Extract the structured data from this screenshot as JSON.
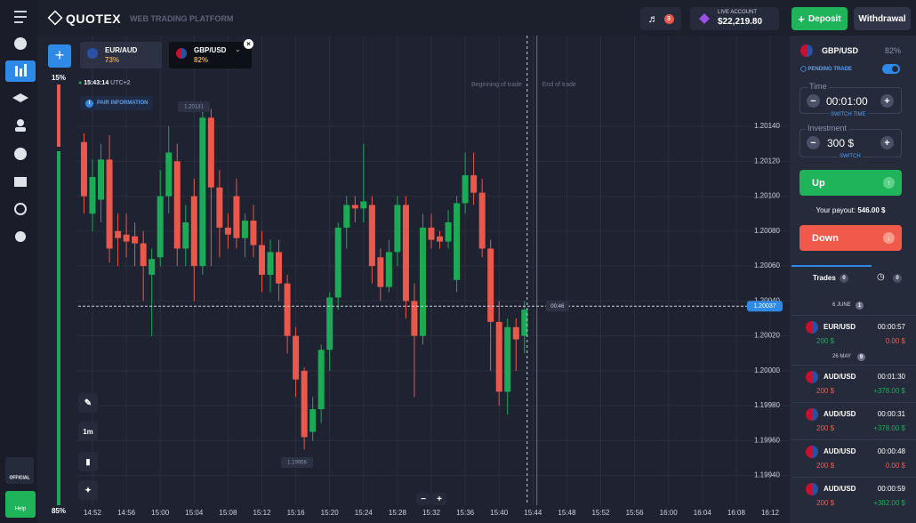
{
  "header": {
    "logo": "QUOTEX",
    "subtitle": "WEB TRADING PLATFORM",
    "notifications": "3",
    "account_type": "LIVE ACCOUNT",
    "balance": "$22,219.80",
    "deposit": "Deposit",
    "withdrawal": "Withdrawal"
  },
  "tabs": [
    {
      "pair": "EUR/AUD",
      "payout": "73%"
    },
    {
      "pair": "GBP/USD",
      "payout": "82%"
    }
  ],
  "sidebar": {
    "top_percent": "15%",
    "bottom_percent": "85%",
    "official": "OFFICIAL",
    "help": "Help"
  },
  "chart": {
    "type": "candlestick",
    "clock": "15:43:14",
    "timezone": "UTC+2",
    "pair_info": "PAIR INFORMATION",
    "max_label": "1.20131",
    "min_label": "1.19956",
    "current_price": 1.20037,
    "timer": "00:46",
    "begin_label": "Beginning of trade",
    "end_label": "End of trade",
    "timeframe": "1m",
    "ylim": [
      1.19923,
      1.20192
    ],
    "yticks": [
      {
        "value": 1.2014,
        "label": "1.20140"
      },
      {
        "value": 1.2012,
        "label": "1.20120"
      },
      {
        "value": 1.201,
        "label": "1.20100"
      },
      {
        "value": 1.2008,
        "label": "1.20080"
      },
      {
        "value": 1.2006,
        "label": "1.20060"
      },
      {
        "value": 1.2004,
        "label": "1.20040"
      },
      {
        "value": 1.2002,
        "label": "1.20020"
      },
      {
        "value": 1.2,
        "label": "1.20000"
      },
      {
        "value": 1.1998,
        "label": "1.19980"
      },
      {
        "value": 1.1996,
        "label": "1.19960"
      },
      {
        "value": 1.1994,
        "label": "1.19940"
      }
    ],
    "categories": [
      "14:52",
      "14:56",
      "15:00",
      "15:04",
      "15:08",
      "15:12",
      "15:16",
      "15:20",
      "15:24",
      "15:28",
      "15:32",
      "15:36",
      "15:40",
      "15:44",
      "15:48",
      "15:52",
      "15:56",
      "16:00",
      "16:04",
      "16:08",
      "16:12"
    ],
    "up_color": "#1bab57",
    "down_color": "#e9584a",
    "candles": [
      {
        "open": 1.20131,
        "high": 1.20136,
        "low": 1.2009,
        "close": 1.201
      },
      {
        "open": 1.2009,
        "high": 1.20121,
        "low": 1.2008,
        "close": 1.20111
      },
      {
        "open": 1.20098,
        "high": 1.2013,
        "low": 1.20085,
        "close": 1.20121
      },
      {
        "open": 1.20121,
        "high": 1.20135,
        "low": 1.20062,
        "close": 1.2007
      },
      {
        "open": 1.2008,
        "high": 1.2009,
        "low": 1.2006,
        "close": 1.20076
      },
      {
        "open": 1.20078,
        "high": 1.2009,
        "low": 1.20065,
        "close": 1.20074
      },
      {
        "open": 1.20077,
        "high": 1.20085,
        "low": 1.2006,
        "close": 1.20073
      },
      {
        "open": 1.20073,
        "high": 1.2008,
        "low": 1.2004,
        "close": 1.2006
      },
      {
        "open": 1.20055,
        "high": 1.2007,
        "low": 1.2002,
        "close": 1.20064
      },
      {
        "open": 1.20065,
        "high": 1.20115,
        "low": 1.2006,
        "close": 1.201
      },
      {
        "open": 1.201,
        "high": 1.2014,
        "low": 1.2009,
        "close": 1.20125
      },
      {
        "open": 1.2012,
        "high": 1.2013,
        "low": 1.2006,
        "close": 1.2007
      },
      {
        "open": 1.2007,
        "high": 1.20095,
        "low": 1.2006,
        "close": 1.20085
      },
      {
        "open": 1.201,
        "high": 1.2011,
        "low": 1.2004,
        "close": 1.2006
      },
      {
        "open": 1.2006,
        "high": 1.2015,
        "low": 1.20055,
        "close": 1.20145
      },
      {
        "open": 1.20145,
        "high": 1.2015,
        "low": 1.2006,
        "close": 1.20105
      },
      {
        "open": 1.20105,
        "high": 1.20115,
        "low": 1.20065,
        "close": 1.20082
      },
      {
        "open": 1.20082,
        "high": 1.2009,
        "low": 1.2007,
        "close": 1.20078
      },
      {
        "open": 1.201,
        "high": 1.2011,
        "low": 1.2007,
        "close": 1.20076
      },
      {
        "open": 1.20076,
        "high": 1.2009,
        "low": 1.20065,
        "close": 1.20086
      },
      {
        "open": 1.20086,
        "high": 1.20095,
        "low": 1.20065,
        "close": 1.20072
      },
      {
        "open": 1.20072,
        "high": 1.2008,
        "low": 1.20045,
        "close": 1.20055
      },
      {
        "open": 1.20055,
        "high": 1.20075,
        "low": 1.20045,
        "close": 1.20068
      },
      {
        "open": 1.20068,
        "high": 1.20075,
        "low": 1.2004,
        "close": 1.2005
      },
      {
        "open": 1.2005,
        "high": 1.20055,
        "low": 1.2001,
        "close": 1.2002
      },
      {
        "open": 1.2002,
        "high": 1.20025,
        "low": 1.19985,
        "close": 1.19995
      },
      {
        "open": 1.2,
        "high": 1.20002,
        "low": 1.19955,
        "close": 1.19962
      },
      {
        "open": 1.19965,
        "high": 1.19985,
        "low": 1.1996,
        "close": 1.19978
      },
      {
        "open": 1.19978,
        "high": 1.20015,
        "low": 1.1997,
        "close": 1.20012
      },
      {
        "open": 1.20012,
        "high": 1.20045,
        "low": 1.2,
        "close": 1.20042
      },
      {
        "open": 1.20042,
        "high": 1.20085,
        "low": 1.20035,
        "close": 1.20082
      },
      {
        "open": 1.20082,
        "high": 1.201,
        "low": 1.2007,
        "close": 1.20095
      },
      {
        "open": 1.20095,
        "high": 1.201,
        "low": 1.20085,
        "close": 1.20093
      },
      {
        "open": 1.20093,
        "high": 1.2013,
        "low": 1.20085,
        "close": 1.20097
      },
      {
        "open": 1.20095,
        "high": 1.201,
        "low": 1.2005,
        "close": 1.2006
      },
      {
        "open": 1.20065,
        "high": 1.2007,
        "low": 1.2004,
        "close": 1.20048
      },
      {
        "open": 1.20048,
        "high": 1.20075,
        "low": 1.20045,
        "close": 1.20068
      },
      {
        "open": 1.20068,
        "high": 1.201,
        "low": 1.2006,
        "close": 1.20095
      },
      {
        "open": 1.20095,
        "high": 1.201,
        "low": 1.2003,
        "close": 1.2004
      },
      {
        "open": 1.2004,
        "high": 1.2005,
        "low": 1.19985,
        "close": 1.2002
      },
      {
        "open": 1.2002,
        "high": 1.2009,
        "low": 1.20015,
        "close": 1.20082
      },
      {
        "open": 1.20082,
        "high": 1.2009,
        "low": 1.2007,
        "close": 1.20075
      },
      {
        "open": 1.20077,
        "high": 1.2008,
        "low": 1.2007,
        "close": 1.20074
      },
      {
        "open": 1.20074,
        "high": 1.20092,
        "low": 1.2007,
        "close": 1.20085
      },
      {
        "open": 1.20052,
        "high": 1.201,
        "low": 1.20045,
        "close": 1.20096
      },
      {
        "open": 1.20096,
        "high": 1.20125,
        "low": 1.2009,
        "close": 1.20112
      },
      {
        "open": 1.20112,
        "high": 1.20125,
        "low": 1.20095,
        "close": 1.20102
      },
      {
        "open": 1.20102,
        "high": 1.2011,
        "low": 1.20065,
        "close": 1.2007
      },
      {
        "open": 1.2007,
        "high": 1.20075,
        "low": 1.2,
        "close": 1.20028
      },
      {
        "open": 1.20028,
        "high": 1.2004,
        "low": 1.1998,
        "close": 1.19988
      },
      {
        "open": 1.19988,
        "high": 1.2003,
        "low": 1.19975,
        "close": 1.20025
      },
      {
        "open": 1.20025,
        "high": 1.2003,
        "low": 1.2,
        "close": 1.20018
      },
      {
        "open": 1.2002,
        "high": 1.2004,
        "low": 1.2001,
        "close": 1.20035
      }
    ]
  },
  "panel": {
    "pair": "GBP/USD",
    "payout": "82%",
    "pending": "PENDING TRADE",
    "time_label": "Time",
    "time": "00:01:00",
    "switch_time": "SWITCH TIME",
    "investment_label": "Investment",
    "investment": "300 $",
    "switch": "SWITCH",
    "up": "Up",
    "payout_label": "Your payout:",
    "payout_value": "546.00 $",
    "down": "Down"
  },
  "trades": {
    "title": "Trades",
    "open_count": "0",
    "closed_count": "0",
    "groups": [
      {
        "date": "6 JUNE",
        "count": "1",
        "items": [
          {
            "pair": "EUR/USD",
            "time": "00:00:57",
            "amount": "200 $",
            "result": "0.00 $"
          }
        ]
      },
      {
        "date": "26 MAY",
        "count": "9",
        "items": [
          {
            "pair": "AUD/USD",
            "time": "00:01:30",
            "amount": "200 $",
            "result": "+378.00 $"
          },
          {
            "pair": "AUD/USD",
            "time": "00:00:31",
            "amount": "200 $",
            "result": "+378.00 $"
          },
          {
            "pair": "AUD/USD",
            "time": "00:00:48",
            "amount": "200 $",
            "result": "0.00 $"
          },
          {
            "pair": "AUD/USD",
            "time": "00:00:59",
            "amount": "200 $",
            "result": "+382.00 $"
          }
        ]
      }
    ]
  }
}
